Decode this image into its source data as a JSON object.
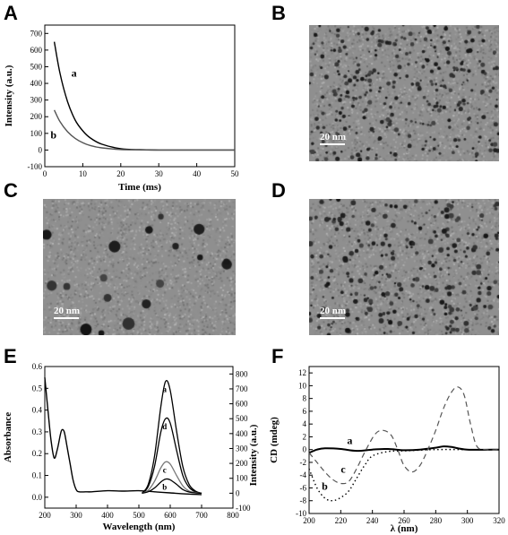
{
  "panels": {
    "A": {
      "letter": "A"
    },
    "B": {
      "letter": "B",
      "scale_label": "20 nm"
    },
    "C": {
      "letter": "C",
      "scale_label": "20 nm"
    },
    "D": {
      "letter": "D",
      "scale_label": "20 nm"
    },
    "E": {
      "letter": "E"
    },
    "F": {
      "letter": "F"
    }
  },
  "chart_data": [
    {
      "panel": "A",
      "type": "line",
      "xlabel": "Time (ms)",
      "ylabel": "Intensity (a.u.)",
      "xlim": [
        0,
        50
      ],
      "ylim": [
        -100,
        750
      ],
      "xticks": [
        0,
        10,
        20,
        30,
        40,
        50
      ],
      "yticks": [
        -100,
        0,
        100,
        200,
        300,
        400,
        500,
        600,
        700
      ],
      "series": [
        {
          "name": "a",
          "color": "#000000",
          "x": [
            2.5,
            4,
            6,
            8,
            10,
            12,
            15,
            20,
            25,
            30,
            40,
            50
          ],
          "y": [
            650,
            460,
            290,
            180,
            115,
            72,
            35,
            8,
            2,
            0,
            0,
            0
          ]
        },
        {
          "name": "b",
          "color": "#555555",
          "x": [
            2.5,
            4,
            6,
            8,
            10,
            12,
            15,
            20,
            25,
            30,
            40,
            50
          ],
          "y": [
            240,
            170,
            110,
            70,
            44,
            27,
            13,
            3,
            1,
            0,
            0,
            0
          ]
        }
      ]
    },
    {
      "panel": "E",
      "type": "line",
      "xlabel": "Wavelength (nm)",
      "ylabel": "Absorbance",
      "y2label": "Intensity (a.u.)",
      "xlim": [
        200,
        800
      ],
      "ylim": [
        -0.05,
        0.6
      ],
      "y2lim": [
        -100,
        850
      ],
      "xticks": [
        200,
        300,
        400,
        500,
        600,
        700,
        800
      ],
      "yticks": [
        0.0,
        0.1,
        0.2,
        0.3,
        0.4,
        0.5,
        0.6
      ],
      "y2ticks": [
        -100,
        0,
        100,
        200,
        300,
        400,
        500,
        600,
        700,
        800
      ],
      "absorbance": {
        "x": [
          200,
          210,
          220,
          230,
          240,
          250,
          255,
          262,
          270,
          280,
          290,
          300,
          310,
          330,
          350,
          400,
          450,
          500,
          550,
          600,
          650,
          700
        ],
        "y": [
          0.55,
          0.4,
          0.26,
          0.18,
          0.22,
          0.29,
          0.31,
          0.3,
          0.24,
          0.16,
          0.08,
          0.035,
          0.025,
          0.025,
          0.025,
          0.03,
          0.028,
          0.03,
          0.025,
          0.02,
          0.015,
          0.012
        ]
      },
      "emission_series": [
        {
          "name": "a",
          "x": [
            510,
            530,
            550,
            570,
            585,
            600,
            620,
            640,
            660,
            680,
            700
          ],
          "y": [
            0,
            60,
            250,
            580,
            750,
            690,
            420,
            180,
            60,
            15,
            0
          ]
        },
        {
          "name": "d",
          "x": [
            510,
            530,
            550,
            570,
            585,
            600,
            620,
            640,
            660,
            680,
            700
          ],
          "y": [
            0,
            45,
            180,
            410,
            500,
            470,
            290,
            120,
            40,
            10,
            0
          ]
        },
        {
          "name": "c",
          "x": [
            510,
            530,
            550,
            570,
            585,
            600,
            620,
            640,
            660,
            680,
            700
          ],
          "y": [
            0,
            20,
            80,
            170,
            210,
            195,
            120,
            50,
            15,
            5,
            0
          ]
        },
        {
          "name": "b",
          "x": [
            510,
            530,
            550,
            570,
            585,
            600,
            620,
            640,
            660,
            680,
            700
          ],
          "y": [
            0,
            10,
            35,
            75,
            95,
            90,
            60,
            25,
            8,
            2,
            0
          ]
        }
      ]
    },
    {
      "panel": "F",
      "type": "line",
      "xlabel": "λ (nm)",
      "ylabel": "CD (mdeg)",
      "xlim": [
        200,
        320
      ],
      "ylim": [
        -10,
        13
      ],
      "xticks": [
        200,
        220,
        240,
        260,
        280,
        300,
        320
      ],
      "yticks": [
        -10,
        -8,
        -6,
        -4,
        -2,
        0,
        2,
        4,
        6,
        8,
        10,
        12
      ],
      "series": [
        {
          "name": "a",
          "style": "solid",
          "x": [
            200,
            205,
            210,
            220,
            230,
            240,
            250,
            260,
            270,
            280,
            285,
            290,
            300,
            320
          ],
          "y": [
            -0.5,
            0,
            0.2,
            0.1,
            -0.2,
            0,
            0.1,
            -0.1,
            0,
            0.3,
            0.5,
            0.4,
            0,
            0
          ]
        },
        {
          "name": "b",
          "style": "dotted",
          "x": [
            200,
            205,
            210,
            215,
            220,
            225,
            230,
            235,
            240,
            250,
            260,
            280,
            300,
            320
          ],
          "y": [
            -3,
            -6,
            -7.6,
            -8,
            -7.5,
            -6.5,
            -4.5,
            -2.5,
            -1,
            -0.3,
            -0.2,
            0,
            0,
            0
          ]
        },
        {
          "name": "c",
          "style": "dashed",
          "x": [
            200,
            205,
            210,
            215,
            220,
            225,
            230,
            236,
            242,
            247,
            252,
            256,
            260,
            265,
            270,
            275,
            280,
            285,
            290,
            294,
            298,
            302,
            306,
            312,
            320
          ],
          "y": [
            -0.5,
            -2,
            -3.5,
            -4.7,
            -5.3,
            -5,
            -3,
            0,
            2.5,
            3,
            2.2,
            0,
            -2.5,
            -3.5,
            -2.5,
            0,
            3,
            6.5,
            9,
            9.8,
            8.5,
            4,
            0.5,
            0,
            0
          ]
        }
      ],
      "annotations": [
        "a",
        "b",
        "c"
      ]
    }
  ]
}
